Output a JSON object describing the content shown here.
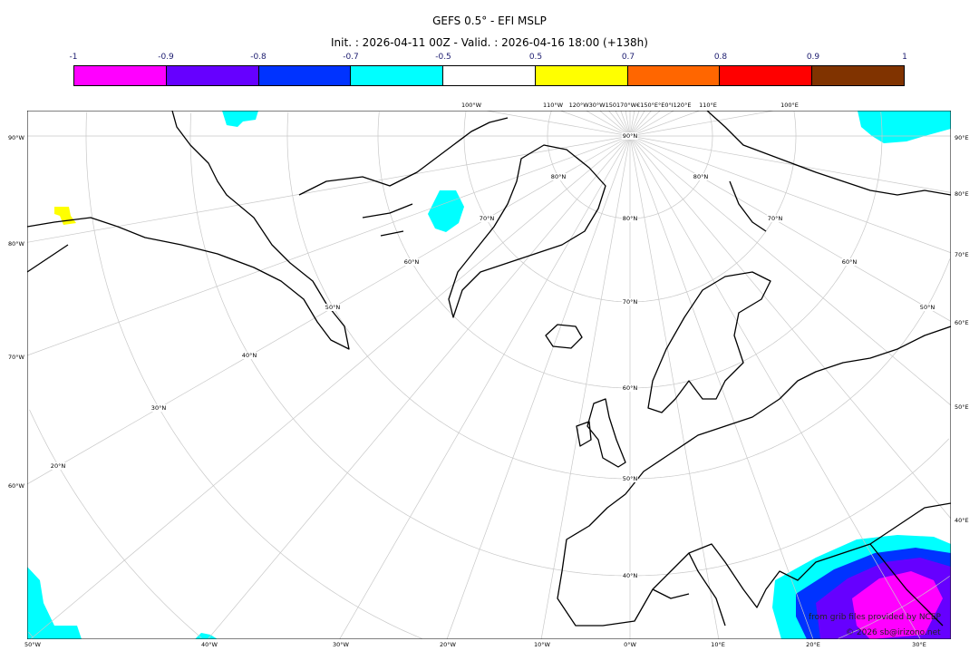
{
  "header": {
    "title": "GEFS 0.5° - EFI MSLP",
    "subtitle": "Init. : 2026-04-11 00Z - Valid. : 2026-04-16 18:00 (+138h)"
  },
  "colorbar": {
    "labels": [
      "-1",
      "-0.9",
      "-0.8",
      "-0.7",
      "-0.5",
      "0.5",
      "0.7",
      "0.8",
      "0.9",
      "1"
    ],
    "colors": [
      "#ff00ff",
      "#6600ff",
      "#0033ff",
      "#00ffff",
      "#ffffff",
      "#ffff00",
      "#ff6600",
      "#ff0000",
      "#803300"
    ]
  },
  "axes": {
    "bottom": [
      "50°W",
      "40°W",
      "30°W",
      "20°W",
      "10°W",
      "0°W",
      "10°E",
      "20°E",
      "30°E"
    ],
    "top": [
      "100°W",
      "110°W",
      "120°W30°W150170°W€150°E°E0°I120°E",
      "110°E",
      "100°E"
    ],
    "left": [
      "90°W",
      "80°W",
      "70°W",
      "60°W"
    ],
    "right": [
      "90°E",
      "80°E",
      "70°E",
      "60°E",
      "50°E",
      "40°E"
    ],
    "lat_center": [
      "90°N",
      "80°N",
      "70°N",
      "60°N",
      "50°N",
      "40°N"
    ],
    "lat_left": [
      "80°N",
      "70°N",
      "60°N",
      "50°N",
      "40°N",
      "30°N",
      "20°N"
    ],
    "lat_right": [
      "80°N",
      "70°N",
      "60°N",
      "50°N"
    ]
  },
  "credits": {
    "line1": "from grib files provided by NCEP",
    "line2": "© 2026 sb@irizono.net"
  }
}
